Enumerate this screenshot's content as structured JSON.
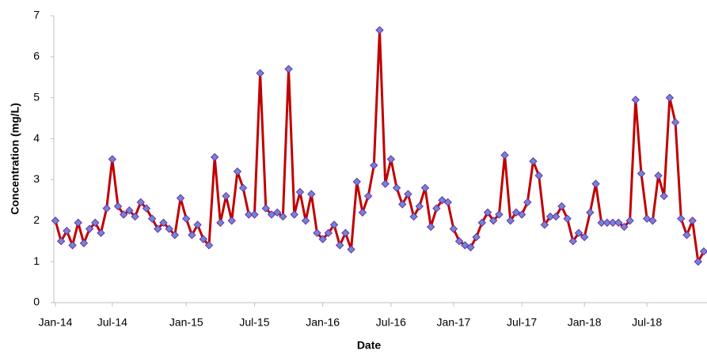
{
  "chart_data": {
    "type": "line",
    "x_label": "Date",
    "y_label": "Concentration (mg/L)",
    "categories": [
      "Jan-14",
      null,
      null,
      null,
      null,
      null,
      null,
      null,
      null,
      null,
      "Jul-14",
      null,
      null,
      null,
      null,
      null,
      null,
      null,
      null,
      null,
      null,
      null,
      null,
      "Jan-15",
      null,
      null,
      null,
      null,
      null,
      null,
      null,
      null,
      null,
      null,
      null,
      "Jul-15",
      null,
      null,
      null,
      null,
      null,
      null,
      null,
      null,
      null,
      null,
      null,
      "Jan-16",
      null,
      null,
      null,
      null,
      null,
      null,
      null,
      null,
      null,
      null,
      null,
      "Jul-16",
      null,
      null,
      null,
      null,
      null,
      null,
      null,
      null,
      null,
      null,
      "Jan-17",
      null,
      null,
      null,
      null,
      null,
      null,
      null,
      null,
      null,
      null,
      null,
      "Jul-17",
      null,
      null,
      null,
      null,
      null,
      null,
      null,
      null,
      null,
      null,
      "Jan-18",
      null,
      null,
      null,
      null,
      null,
      null,
      null,
      null,
      null,
      null,
      "Jul-18",
      null,
      null,
      null,
      null,
      null,
      null,
      null,
      null,
      null,
      null
    ],
    "series": [
      {
        "name": "Concentration",
        "color": "#c00000",
        "marker_color": "#6f86d8",
        "marker_edge": "#7030a0",
        "values": [
          2.0,
          1.5,
          1.75,
          1.4,
          1.95,
          1.45,
          1.8,
          1.95,
          1.7,
          2.3,
          3.5,
          2.35,
          2.15,
          2.25,
          2.1,
          2.45,
          2.3,
          2.05,
          1.8,
          1.95,
          1.8,
          1.65,
          2.55,
          2.05,
          1.65,
          1.9,
          1.55,
          1.4,
          3.55,
          1.95,
          2.6,
          2.0,
          3.2,
          2.8,
          2.15,
          2.15,
          5.6,
          2.3,
          2.15,
          2.2,
          2.1,
          5.7,
          2.15,
          2.7,
          2.0,
          2.65,
          1.7,
          1.55,
          1.7,
          1.9,
          1.4,
          1.7,
          1.3,
          2.95,
          2.2,
          2.6,
          3.35,
          6.65,
          2.9,
          3.5,
          2.8,
          2.4,
          2.65,
          2.1,
          2.35,
          2.8,
          1.85,
          2.3,
          2.5,
          2.45,
          1.8,
          1.5,
          1.4,
          1.35,
          1.6,
          1.95,
          2.2,
          2.0,
          2.15,
          3.6,
          2.0,
          2.2,
          2.15,
          2.45,
          3.45,
          3.1,
          1.9,
          2.1,
          2.1,
          2.35,
          2.05,
          1.5,
          1.7,
          1.6,
          2.2,
          2.9,
          1.95,
          1.95,
          1.95,
          1.95,
          1.85,
          2.0,
          4.95,
          3.15,
          2.05,
          2.0,
          3.1,
          2.6,
          5.0,
          4.4,
          2.05,
          1.65,
          2.0,
          1.0,
          1.25
        ]
      }
    ],
    "ylim": [
      0,
      7
    ],
    "yticks": [
      0,
      1,
      2,
      3,
      4,
      5,
      6,
      7
    ],
    "grid": false
  }
}
